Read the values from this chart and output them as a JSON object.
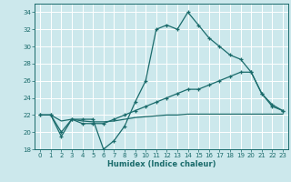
{
  "xlabel": "Humidex (Indice chaleur)",
  "background_color": "#cce8ec",
  "grid_color": "#ffffff",
  "line_color": "#1a6b6b",
  "ylim": [
    18,
    35
  ],
  "xlim": [
    -0.5,
    23.5
  ],
  "yticks": [
    18,
    20,
    22,
    24,
    26,
    28,
    30,
    32,
    34
  ],
  "xticks": [
    0,
    1,
    2,
    3,
    4,
    5,
    6,
    7,
    8,
    9,
    10,
    11,
    12,
    13,
    14,
    15,
    16,
    17,
    18,
    19,
    20,
    21,
    22,
    23
  ],
  "line1_x": [
    0,
    1,
    2,
    3,
    4,
    5,
    6,
    7,
    8,
    9,
    10,
    11,
    12,
    13,
    14,
    15,
    16,
    17,
    18,
    19,
    20,
    21,
    22,
    23
  ],
  "line1_y": [
    22,
    22,
    19.5,
    21.5,
    21.5,
    21.5,
    18,
    19,
    20.7,
    23.5,
    26,
    32,
    32.5,
    32,
    34,
    32.5,
    31,
    30,
    29,
    28.5,
    27,
    24.5,
    23,
    22.5
  ],
  "line2_x": [
    0,
    1,
    2,
    3,
    4,
    5,
    6,
    7,
    8,
    9,
    10,
    11,
    12,
    13,
    14,
    15,
    16,
    17,
    18,
    19,
    20,
    21,
    22,
    23
  ],
  "line2_y": [
    22,
    22,
    21.3,
    21.5,
    21.3,
    21.2,
    21.2,
    21.3,
    21.5,
    21.7,
    21.8,
    21.9,
    22.0,
    22.0,
    22.1,
    22.1,
    22.1,
    22.1,
    22.1,
    22.1,
    22.1,
    22.1,
    22.1,
    22.1
  ],
  "line3_x": [
    0,
    1,
    2,
    3,
    4,
    5,
    6,
    7,
    8,
    9,
    10,
    11,
    12,
    13,
    14,
    15,
    16,
    17,
    18,
    19,
    20,
    21,
    22,
    23
  ],
  "line3_y": [
    22,
    22,
    20,
    21.5,
    21,
    21,
    21,
    21.5,
    22.0,
    22.5,
    23.0,
    23.5,
    24.0,
    24.5,
    25.0,
    25.0,
    25.5,
    26.0,
    26.5,
    27.0,
    27.0,
    24.5,
    23.2,
    22.5
  ]
}
